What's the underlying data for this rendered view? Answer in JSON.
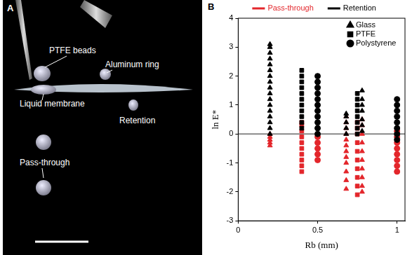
{
  "image": {
    "label": "A",
    "annotations": [
      "PTFE beads",
      "Aluminum ring",
      "Liquid membrane",
      "Retention",
      "Pass-through"
    ]
  },
  "chart_data": {
    "type": "scatter",
    "title": "B",
    "x_label": "Rb (mm)",
    "y_label": "ln E*",
    "xlim": [
      0,
      1.05
    ],
    "xticks": [
      0,
      0.5,
      1
    ],
    "ylim": [
      -3,
      4
    ],
    "yticks": [
      -3,
      -2,
      -1,
      0,
      1,
      2,
      3,
      4
    ],
    "grid": false,
    "hline": 0,
    "outcomes": [
      {
        "name": "Pass-through",
        "color": "#e3262b"
      },
      {
        "name": "Retention",
        "color": "#000000"
      }
    ],
    "series": [
      {
        "name": "Glass",
        "marker": "triangle",
        "columns": [
          {
            "x": 0.2,
            "Retention": [
              0.0,
              0.2,
              0.4,
              0.6,
              0.8,
              1.0,
              1.2,
              1.4,
              1.6,
              1.8,
              2.0,
              2.2,
              2.4,
              2.6,
              2.8,
              3.0,
              3.1
            ],
            "Pass-through": [
              -0.4,
              -0.3,
              -0.2,
              -0.1,
              0.0
            ]
          },
          {
            "x": 0.68,
            "Retention": [
              0.0,
              0.2,
              0.4,
              0.6,
              0.7
            ],
            "Pass-through": [
              -1.9,
              -1.6,
              -1.3,
              -1.0,
              -0.8,
              -0.6,
              -0.4,
              -0.2,
              0.0,
              0.2,
              0.4,
              0.6
            ]
          },
          {
            "x": 0.78,
            "Retention": [
              0.1,
              0.3,
              0.5,
              0.8,
              1.0,
              1.2,
              1.5
            ],
            "Pass-through": [
              -2.0,
              -1.8,
              -1.5,
              -1.2,
              -0.9,
              -0.6,
              -0.3,
              0.0,
              0.3,
              0.5
            ]
          }
        ]
      },
      {
        "name": "PTFE",
        "marker": "square",
        "columns": [
          {
            "x": 0.4,
            "Retention": [
              0.2,
              0.4,
              0.6,
              0.8,
              1.0,
              1.2,
              1.4,
              1.6,
              1.8,
              2.0,
              2.2
            ],
            "Pass-through": [
              -1.3,
              -1.1,
              -0.9,
              -0.7,
              -0.5,
              -0.3,
              -0.1,
              0.1,
              0.3,
              0.4
            ]
          },
          {
            "x": 0.75,
            "Retention": [
              0.0,
              0.2,
              0.4,
              0.6,
              0.8,
              1.0,
              1.2,
              1.4
            ],
            "Pass-through": [
              -2.1,
              -1.8,
              -1.5,
              -1.2,
              -0.9,
              -0.6,
              -0.3,
              0.0,
              0.2,
              0.4
            ]
          }
        ]
      },
      {
        "name": "Polystyrene",
        "marker": "circle",
        "columns": [
          {
            "x": 0.5,
            "Retention": [
              0.0,
              0.2,
              0.4,
              0.6,
              0.8,
              1.0,
              1.2,
              1.4,
              1.6,
              1.8,
              2.0
            ],
            "Pass-through": [
              -0.9,
              -0.7,
              -0.5,
              -0.3,
              -0.1
            ]
          },
          {
            "x": 1.0,
            "Retention": [
              -0.2,
              0.0,
              0.2,
              0.4,
              0.6,
              0.8,
              1.0,
              1.2
            ],
            "Pass-through": [
              -1.3,
              -1.1,
              -0.9,
              -0.7,
              -0.5,
              -0.3,
              -0.1,
              0.1
            ]
          }
        ]
      }
    ]
  }
}
